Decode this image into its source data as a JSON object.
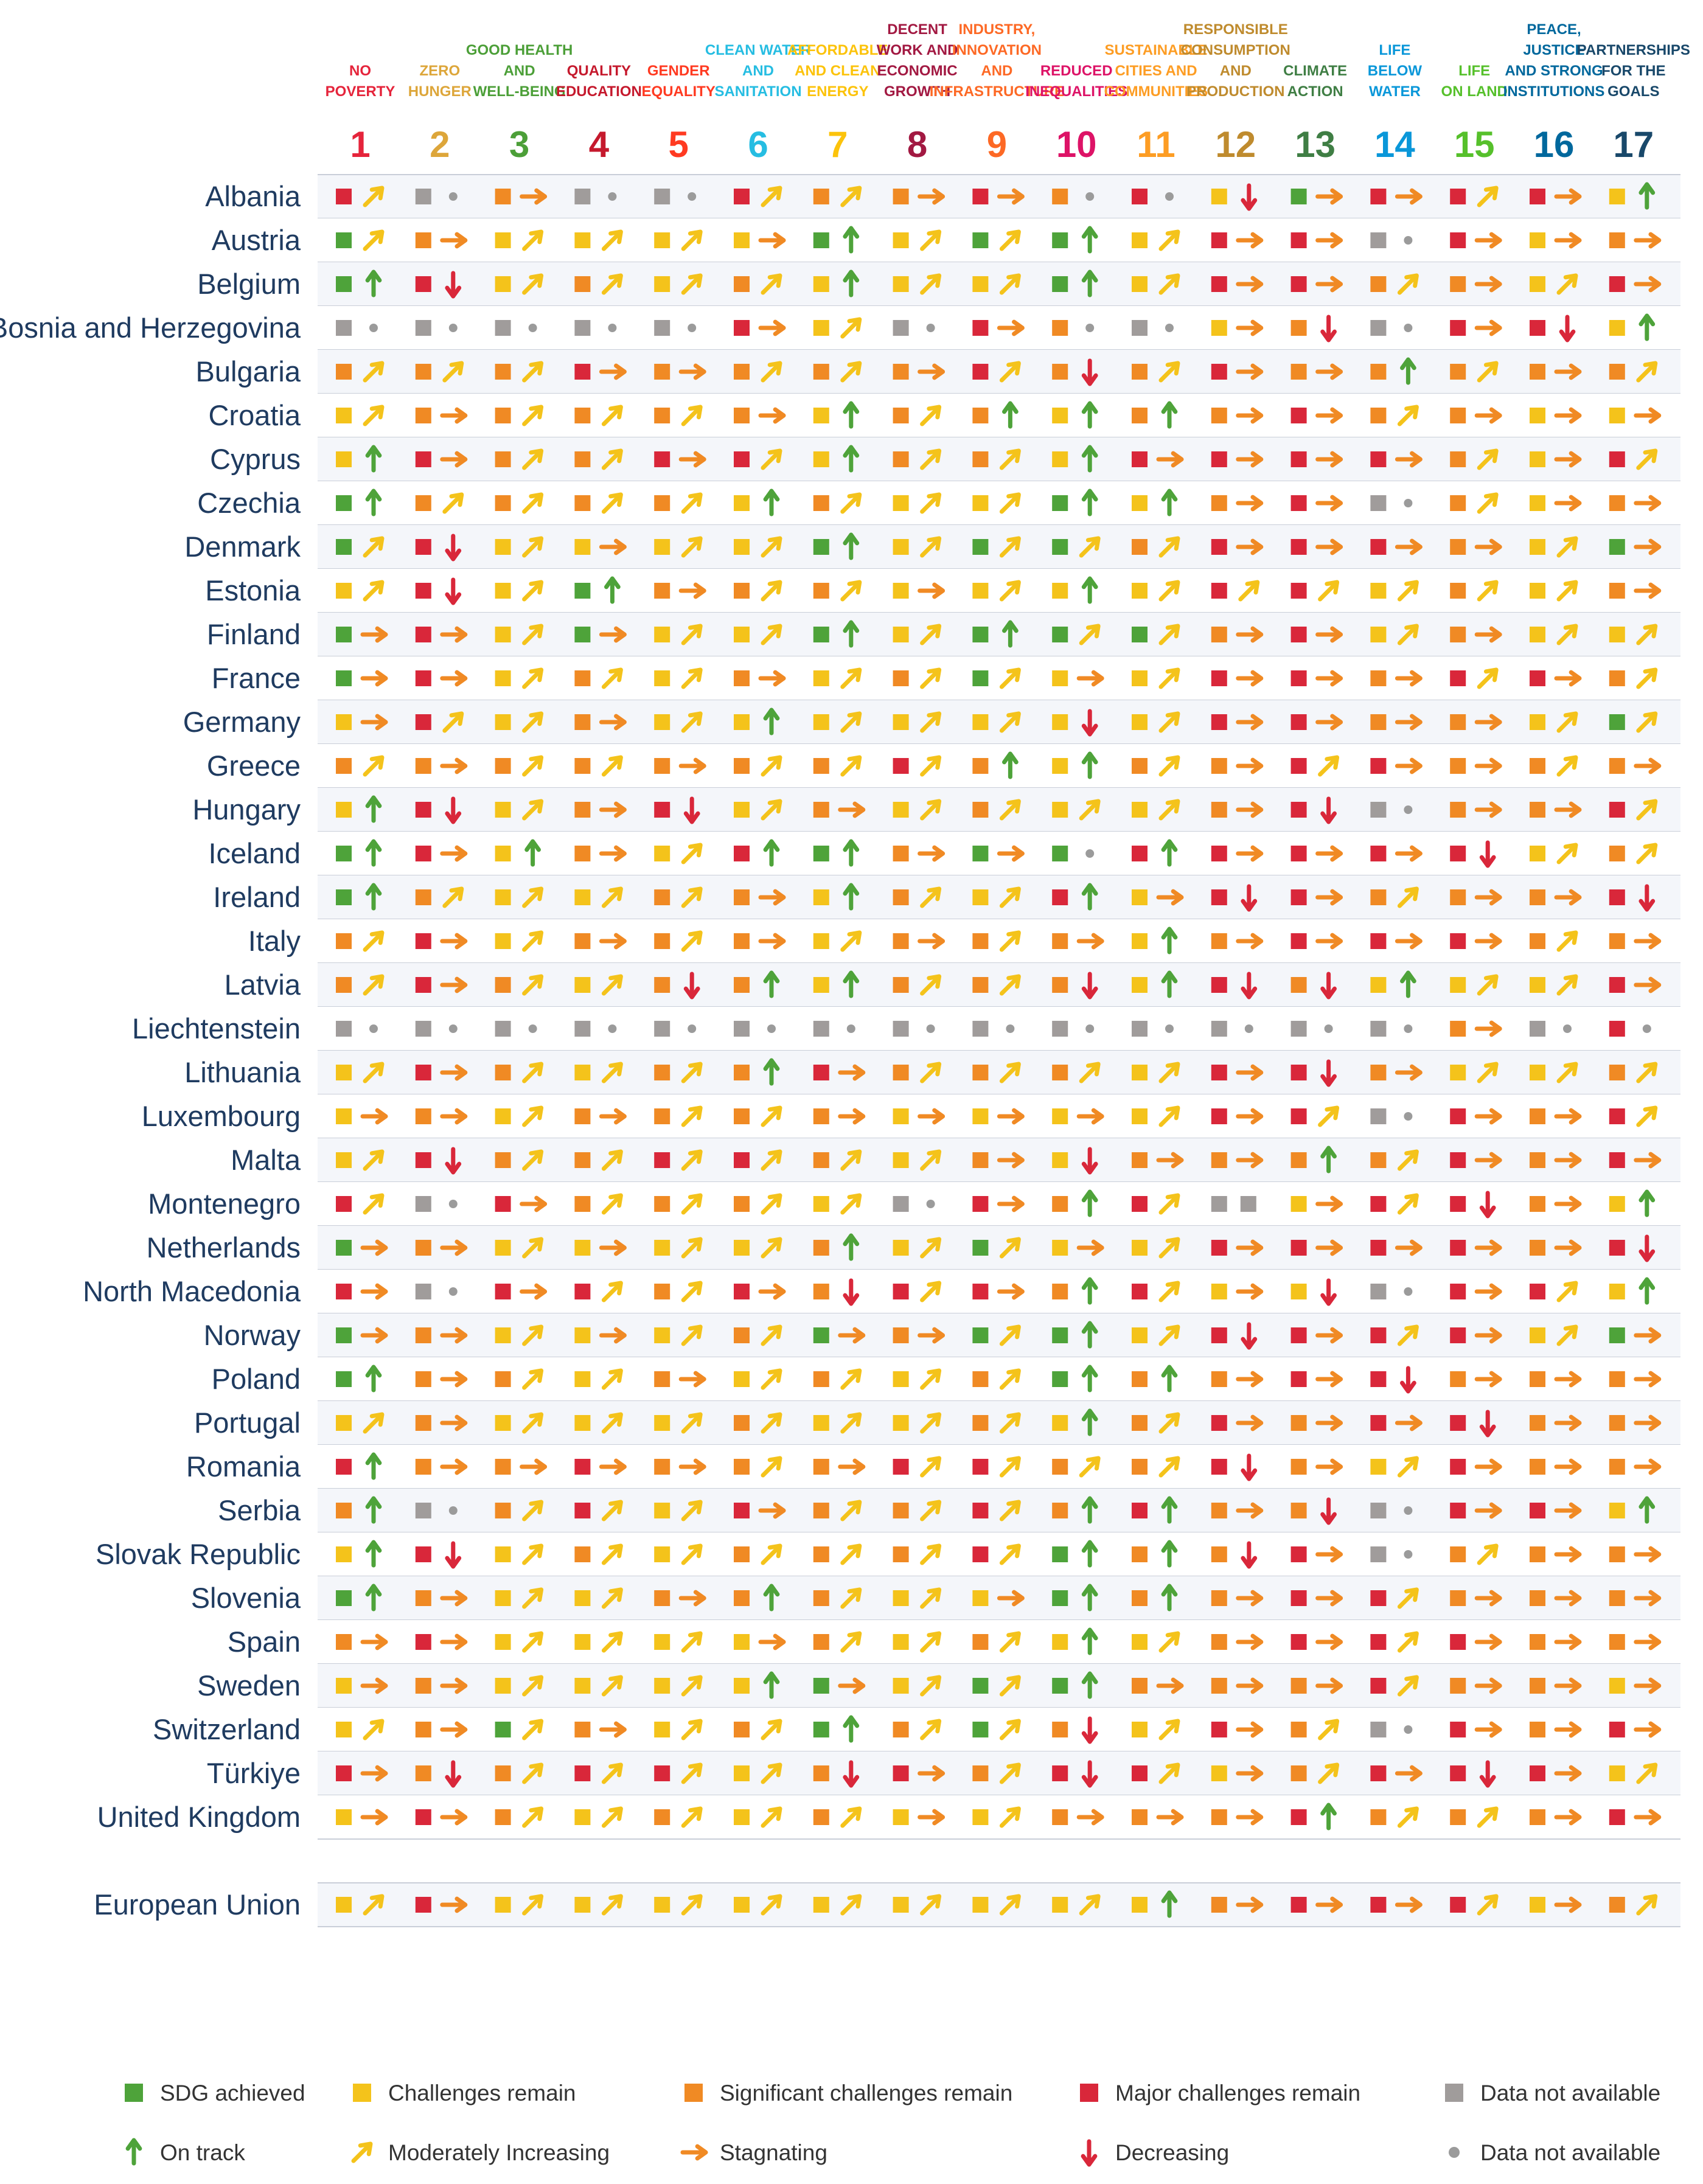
{
  "colors": {
    "green": "#4ea33a",
    "yellow": "#f4c31b",
    "orange": "#f08a24",
    "red": "#d9273a",
    "grey": "#a09c9b",
    "dot": "#9b9b9b",
    "row_even": "#ffffff",
    "row_odd": "#f4f6fa",
    "country_text": "#1f3b60"
  },
  "chart_data": {
    "type": "table",
    "goals": [
      {
        "number": "1",
        "title": [
          "NO",
          "POVERTY"
        ],
        "color": "#e5243b"
      },
      {
        "number": "2",
        "title": [
          "ZERO",
          "HUNGER"
        ],
        "color": "#dda63a"
      },
      {
        "number": "3",
        "title": [
          "GOOD HEALTH",
          "AND",
          "WELL-BEING"
        ],
        "color": "#4c9f38"
      },
      {
        "number": "4",
        "title": [
          "QUALITY",
          "EDUCATION"
        ],
        "color": "#c5192d"
      },
      {
        "number": "5",
        "title": [
          "GENDER",
          "EQUALITY"
        ],
        "color": "#ff3a21"
      },
      {
        "number": "6",
        "title": [
          "CLEAN WATER",
          "AND",
          "SANITATION"
        ],
        "color": "#26bde2"
      },
      {
        "number": "7",
        "title": [
          "AFFORDABLE",
          "AND CLEAN",
          "ENERGY"
        ],
        "color": "#fcc30b"
      },
      {
        "number": "8",
        "title": [
          "DECENT",
          "WORK AND",
          "ECONOMIC",
          "GROWTH"
        ],
        "color": "#a21942"
      },
      {
        "number": "9",
        "title": [
          "INDUSTRY,",
          "INNOVATION",
          "AND",
          "INFRASTRUCTURE"
        ],
        "color": "#fd6925"
      },
      {
        "number": "10",
        "title": [
          "REDUCED",
          "INEQUALITIES"
        ],
        "color": "#dd1367"
      },
      {
        "number": "11",
        "title": [
          "SUSTAINABLE",
          "CITIES AND",
          "COMMUNITIES"
        ],
        "color": "#fd9d24"
      },
      {
        "number": "12",
        "title": [
          "RESPONSIBLE",
          "CONSUMPTION",
          "AND",
          "PRODUCTION"
        ],
        "color": "#bf8b2e"
      },
      {
        "number": "13",
        "title": [
          "CLIMATE",
          "ACTION"
        ],
        "color": "#3f7e44"
      },
      {
        "number": "14",
        "title": [
          "LIFE",
          "BELOW",
          "WATER"
        ],
        "color": "#0a97d9"
      },
      {
        "number": "15",
        "title": [
          "LIFE",
          "ON LAND"
        ],
        "color": "#56c02b"
      },
      {
        "number": "16",
        "title": [
          "PEACE,",
          "JUSTICE",
          "AND STRONG",
          "INSTITUTIONS"
        ],
        "color": "#00689d"
      },
      {
        "number": "17",
        "title": [
          "PARTNERSHIPS",
          "FOR THE",
          "GOALS"
        ],
        "color": "#19486a"
      }
    ],
    "rows": [
      {
        "country": "Albania",
        "cells": [
          "R1",
          "X.",
          "O2",
          "X.",
          "X.",
          "R1",
          "O1",
          "O2",
          "R2",
          "O.",
          "R.",
          "Y3",
          "G2",
          "R2",
          "R1",
          "R2",
          "Y0"
        ]
      },
      {
        "country": "Austria",
        "cells": [
          "G1",
          "O2",
          "Y1",
          "Y1",
          "Y1",
          "Y2",
          "G0",
          "Y1",
          "G1",
          "G0",
          "Y1",
          "R2",
          "R2",
          "X.",
          "R2",
          "Y2",
          "O2"
        ]
      },
      {
        "country": "Belgium",
        "cells": [
          "G0",
          "R3",
          "Y1",
          "O1",
          "Y1",
          "O1",
          "Y0",
          "Y1",
          "Y1",
          "G0",
          "Y1",
          "R2",
          "R2",
          "O1",
          "O2",
          "Y1",
          "R2"
        ]
      },
      {
        "country": "Bosnia and Herzegovina",
        "cells": [
          "X.",
          "X.",
          "X.",
          "X.",
          "X.",
          "R2",
          "Y1",
          "X.",
          "R2",
          "O.",
          "X.",
          "Y2",
          "O3",
          "X.",
          "R2",
          "R3",
          "Y0"
        ]
      },
      {
        "country": "Bulgaria",
        "cells": [
          "O1",
          "O1",
          "O1",
          "R2",
          "O2",
          "O1",
          "O1",
          "O2",
          "R1",
          "O3",
          "O1",
          "R2",
          "O2",
          "O0",
          "O1",
          "O2",
          "O1"
        ]
      },
      {
        "country": "Croatia",
        "cells": [
          "Y1",
          "O2",
          "O1",
          "O1",
          "O1",
          "O2",
          "Y0",
          "O1",
          "O0",
          "Y0",
          "O0",
          "O2",
          "R2",
          "O1",
          "O2",
          "Y2",
          "Y2"
        ]
      },
      {
        "country": "Cyprus",
        "cells": [
          "Y0",
          "R2",
          "O1",
          "O1",
          "R2",
          "R1",
          "Y0",
          "O1",
          "O1",
          "Y0",
          "R2",
          "R2",
          "R2",
          "R2",
          "O1",
          "Y2",
          "R1"
        ]
      },
      {
        "country": "Czechia",
        "cells": [
          "G0",
          "O1",
          "O1",
          "O1",
          "O1",
          "Y0",
          "O1",
          "Y1",
          "Y1",
          "G0",
          "Y0",
          "O2",
          "R2",
          "X.",
          "O1",
          "Y2",
          "O2"
        ]
      },
      {
        "country": "Denmark",
        "cells": [
          "G1",
          "R3",
          "Y1",
          "Y2",
          "Y1",
          "Y1",
          "G0",
          "Y1",
          "G1",
          "G1",
          "O1",
          "R2",
          "R2",
          "R2",
          "O2",
          "Y1",
          "G2"
        ]
      },
      {
        "country": "Estonia",
        "cells": [
          "Y1",
          "R3",
          "Y1",
          "G0",
          "O2",
          "O1",
          "O1",
          "Y2",
          "Y1",
          "Y0",
          "Y1",
          "R1",
          "R1",
          "Y1",
          "O1",
          "Y1",
          "O2"
        ]
      },
      {
        "country": "Finland",
        "cells": [
          "G2",
          "R2",
          "Y1",
          "G2",
          "Y1",
          "Y1",
          "G0",
          "Y1",
          "G0",
          "G1",
          "G1",
          "O2",
          "R2",
          "Y1",
          "O2",
          "Y1",
          "Y1"
        ]
      },
      {
        "country": "France",
        "cells": [
          "G2",
          "R2",
          "Y1",
          "O1",
          "Y1",
          "O2",
          "Y1",
          "O1",
          "G1",
          "Y2",
          "Y1",
          "R2",
          "R2",
          "O2",
          "R1",
          "R2",
          "O1"
        ]
      },
      {
        "country": "Germany",
        "cells": [
          "Y2",
          "R1",
          "Y1",
          "O2",
          "Y1",
          "Y0",
          "Y1",
          "Y1",
          "Y1",
          "Y3",
          "Y1",
          "R2",
          "R2",
          "O2",
          "O2",
          "Y1",
          "G1"
        ]
      },
      {
        "country": "Greece",
        "cells": [
          "O1",
          "O2",
          "O1",
          "O1",
          "O2",
          "O1",
          "O1",
          "R1",
          "O0",
          "Y0",
          "O1",
          "O2",
          "R1",
          "R2",
          "O2",
          "O1",
          "O2"
        ]
      },
      {
        "country": "Hungary",
        "cells": [
          "Y0",
          "R3",
          "Y1",
          "O2",
          "R3",
          "Y1",
          "O2",
          "Y1",
          "O1",
          "Y1",
          "Y1",
          "O2",
          "R3",
          "X.",
          "O2",
          "O2",
          "R1"
        ]
      },
      {
        "country": "Iceland",
        "cells": [
          "G0",
          "R2",
          "Y0",
          "O2",
          "Y1",
          "R0",
          "G0",
          "O2",
          "G2",
          "G.",
          "R0",
          "R2",
          "R2",
          "R2",
          "R3",
          "Y1",
          "O1"
        ]
      },
      {
        "country": "Ireland",
        "cells": [
          "G0",
          "O1",
          "Y1",
          "Y1",
          "O1",
          "O2",
          "Y0",
          "O1",
          "Y1",
          "R0",
          "Y2",
          "R3",
          "R2",
          "O1",
          "O2",
          "O2",
          "R3"
        ]
      },
      {
        "country": "Italy",
        "cells": [
          "O1",
          "R2",
          "Y1",
          "O2",
          "O1",
          "O2",
          "Y1",
          "O2",
          "O1",
          "O2",
          "Y0",
          "O2",
          "R2",
          "R2",
          "R2",
          "O1",
          "O2"
        ]
      },
      {
        "country": "Latvia",
        "cells": [
          "O1",
          "R2",
          "O1",
          "Y1",
          "O3",
          "O0",
          "Y0",
          "O1",
          "O1",
          "O3",
          "Y0",
          "R3",
          "O3",
          "Y0",
          "Y1",
          "Y1",
          "R2"
        ]
      },
      {
        "country": "Liechtenstein",
        "cells": [
          "X.",
          "X.",
          "X.",
          "X.",
          "X.",
          "X.",
          "X.",
          "X.",
          "X.",
          "X.",
          "X.",
          "X.",
          "X.",
          "X.",
          "O2",
          "X.",
          "R."
        ]
      },
      {
        "country": "Lithuania",
        "cells": [
          "Y1",
          "R2",
          "O1",
          "Y1",
          "O1",
          "O0",
          "R2",
          "O1",
          "O1",
          "O1",
          "Y1",
          "R2",
          "R3",
          "O2",
          "Y1",
          "Y1",
          "O1"
        ]
      },
      {
        "country": "Luxembourg",
        "cells": [
          "Y2",
          "O2",
          "Y1",
          "O2",
          "O1",
          "O1",
          "O2",
          "Y2",
          "Y2",
          "Y2",
          "Y1",
          "R2",
          "R1",
          "X.",
          "R2",
          "O2",
          "R1"
        ]
      },
      {
        "country": "Malta",
        "cells": [
          "Y1",
          "R3",
          "O1",
          "O1",
          "R1",
          "R1",
          "O1",
          "Y1",
          "O2",
          "Y3",
          "O2",
          "O2",
          "O0",
          "O1",
          "R2",
          "O2",
          "R2"
        ]
      },
      {
        "country": "Montenegro",
        "cells": [
          "R1",
          "X.",
          "R2",
          "O1",
          "O1",
          "O1",
          "Y1",
          "X.",
          "R2",
          "O0",
          "R1",
          "XX",
          "Y2",
          "R1",
          "R3",
          "O2",
          "Y0"
        ]
      },
      {
        "country": "Netherlands",
        "cells": [
          "G2",
          "O2",
          "Y1",
          "Y2",
          "Y1",
          "Y1",
          "O0",
          "Y1",
          "G1",
          "Y2",
          "Y1",
          "R2",
          "R2",
          "R2",
          "R2",
          "O2",
          "R3"
        ]
      },
      {
        "country": "North Macedonia",
        "cells": [
          "R2",
          "X.",
          "R2",
          "R1",
          "O1",
          "R2",
          "O3",
          "R1",
          "R2",
          "O0",
          "R1",
          "Y2",
          "Y3",
          "X.",
          "R2",
          "R1",
          "Y0"
        ]
      },
      {
        "country": "Norway",
        "cells": [
          "G2",
          "O2",
          "Y1",
          "Y2",
          "Y1",
          "O1",
          "G2",
          "O2",
          "G1",
          "G0",
          "Y1",
          "R3",
          "R2",
          "R1",
          "R2",
          "Y1",
          "G2"
        ]
      },
      {
        "country": "Poland",
        "cells": [
          "G0",
          "O2",
          "O1",
          "Y1",
          "O2",
          "Y1",
          "O1",
          "Y1",
          "O1",
          "G0",
          "O0",
          "O2",
          "R2",
          "R3",
          "O2",
          "O2",
          "O2"
        ]
      },
      {
        "country": "Portugal",
        "cells": [
          "Y1",
          "O2",
          "Y1",
          "Y1",
          "Y1",
          "O1",
          "Y1",
          "Y1",
          "O1",
          "Y0",
          "O1",
          "R2",
          "O2",
          "R2",
          "R3",
          "O2",
          "O2"
        ]
      },
      {
        "country": "Romania",
        "cells": [
          "R0",
          "O2",
          "O2",
          "R2",
          "O2",
          "O1",
          "O2",
          "R1",
          "R1",
          "O1",
          "O1",
          "R3",
          "O2",
          "Y1",
          "R2",
          "O2",
          "O2"
        ]
      },
      {
        "country": "Serbia",
        "cells": [
          "O0",
          "X.",
          "O1",
          "R1",
          "Y1",
          "R2",
          "O1",
          "O1",
          "R1",
          "O0",
          "R0",
          "O2",
          "O3",
          "X.",
          "R2",
          "R2",
          "Y0"
        ]
      },
      {
        "country": "Slovak Republic",
        "cells": [
          "Y0",
          "R3",
          "Y1",
          "O1",
          "Y1",
          "O1",
          "O1",
          "O1",
          "R1",
          "G0",
          "O0",
          "O3",
          "R2",
          "X.",
          "O1",
          "O2",
          "O2"
        ]
      },
      {
        "country": "Slovenia",
        "cells": [
          "G0",
          "O2",
          "Y1",
          "Y1",
          "O2",
          "O0",
          "O1",
          "Y1",
          "Y2",
          "G0",
          "O0",
          "O2",
          "R2",
          "R1",
          "O2",
          "O2",
          "O2"
        ]
      },
      {
        "country": "Spain",
        "cells": [
          "O2",
          "R2",
          "Y1",
          "Y1",
          "Y1",
          "Y2",
          "O1",
          "Y1",
          "O1",
          "Y0",
          "Y1",
          "O2",
          "R2",
          "R1",
          "R2",
          "O2",
          "O2"
        ]
      },
      {
        "country": "Sweden",
        "cells": [
          "Y2",
          "O2",
          "Y1",
          "Y1",
          "Y1",
          "Y0",
          "G2",
          "Y1",
          "G1",
          "G0",
          "O2",
          "O2",
          "O2",
          "R1",
          "O2",
          "O2",
          "Y2"
        ]
      },
      {
        "country": "Switzerland",
        "cells": [
          "Y1",
          "O2",
          "G1",
          "O2",
          "Y1",
          "O1",
          "G0",
          "O1",
          "G1",
          "O3",
          "Y1",
          "R2",
          "O1",
          "X.",
          "R2",
          "O2",
          "R2"
        ]
      },
      {
        "country": "Türkiye",
        "cells": [
          "R2",
          "O3",
          "O1",
          "R1",
          "R1",
          "Y1",
          "O3",
          "R2",
          "O1",
          "R3",
          "R1",
          "Y2",
          "O1",
          "R2",
          "R3",
          "R2",
          "Y1"
        ]
      },
      {
        "country": "United Kingdom",
        "cells": [
          "Y2",
          "R2",
          "O1",
          "Y1",
          "O1",
          "Y1",
          "O1",
          "Y2",
          "Y1",
          "O2",
          "O2",
          "O2",
          "R0",
          "O1",
          "O1",
          "O2",
          "R2"
        ]
      }
    ],
    "aggregate": {
      "country": "European Union",
      "cells": [
        "Y1",
        "R2",
        "Y1",
        "Y1",
        "Y1",
        "Y1",
        "Y1",
        "Y1",
        "Y1",
        "Y1",
        "Y0",
        "O2",
        "R2",
        "R2",
        "R1",
        "Y2",
        "O1"
      ]
    },
    "legend": {
      "status": [
        {
          "label": "SDG achieved",
          "color": "#4ea33a"
        },
        {
          "label": "Challenges remain",
          "color": "#f4c31b"
        },
        {
          "label": "Significant challenges remain",
          "color": "#f08a24"
        },
        {
          "label": "Major challenges remain",
          "color": "#d9273a"
        },
        {
          "label": "Data not available",
          "color": "#a09c9b"
        }
      ],
      "trend": [
        {
          "label": "On track",
          "symbol": "up-arrow",
          "color": "#4ea33a"
        },
        {
          "label": "Moderately Increasing",
          "symbol": "diagonal-arrow",
          "color": "#f4c31b"
        },
        {
          "label": "Stagnating",
          "symbol": "right-arrow",
          "color": "#f08a24"
        },
        {
          "label": "Decreasing",
          "symbol": "down-arrow",
          "color": "#d9273a"
        },
        {
          "label": "Data not available",
          "symbol": "dot",
          "color": "#9b9b9b"
        }
      ]
    }
  }
}
